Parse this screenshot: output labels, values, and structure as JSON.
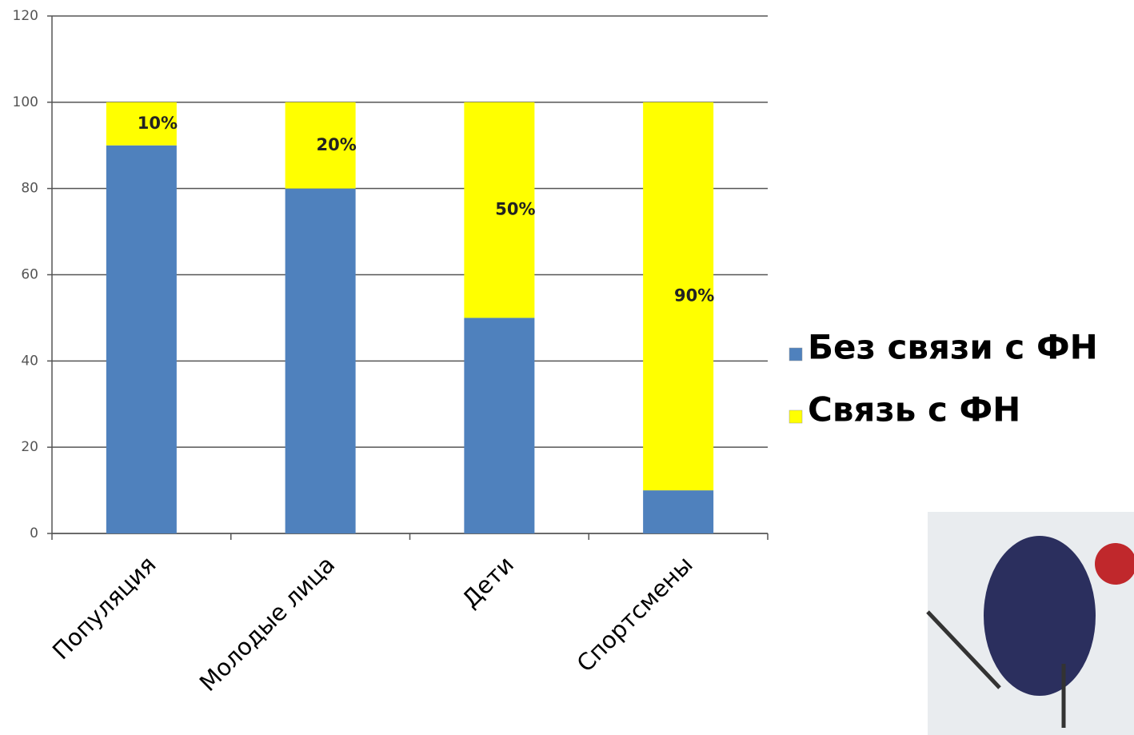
{
  "chart_data": {
    "type": "stacked_bar",
    "categories": [
      "Популяция",
      "Молодые лица",
      "Дети",
      "Спортсмены"
    ],
    "series": [
      {
        "name": "Без связи с ФН",
        "color": "#4f81bd",
        "values": [
          90,
          80,
          50,
          10
        ]
      },
      {
        "name": "Связь с ФН",
        "color": "#ffff00",
        "values": [
          10,
          20,
          50,
          90
        ],
        "value_labels": [
          "10%",
          "20%",
          "50%",
          "90%"
        ]
      }
    ],
    "ylim": [
      0,
      120
    ],
    "yticks": [
      0,
      20,
      40,
      60,
      80,
      100,
      120
    ],
    "grid": true,
    "legend": "right"
  }
}
